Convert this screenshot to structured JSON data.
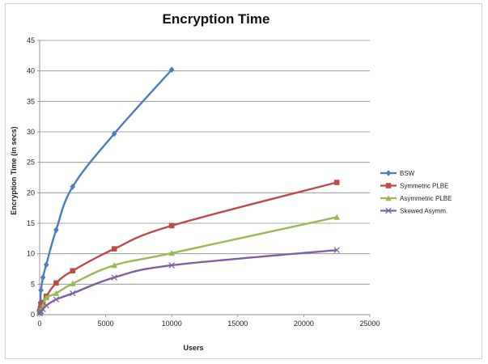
{
  "chart_data": {
    "type": "line",
    "title": "Encryption Time",
    "xlabel": "Users",
    "ylabel": "Encryption Time (in secs)",
    "xlim": [
      0,
      25000
    ],
    "ylim": [
      0,
      45
    ],
    "x_ticks": [
      0,
      5000,
      10000,
      15000,
      20000,
      25000
    ],
    "y_ticks": [
      0,
      5,
      10,
      15,
      20,
      25,
      30,
      35,
      40,
      45
    ],
    "grid": "horizontal",
    "legend_position": "right",
    "series": [
      {
        "name": "BSW",
        "color": "#4a7ebb",
        "marker": "diamond",
        "points": [
          [
            0,
            0.5
          ],
          [
            50,
            2
          ],
          [
            100,
            4
          ],
          [
            250,
            6.1
          ],
          [
            500,
            8.2
          ],
          [
            1250,
            13.9
          ],
          [
            2500,
            21
          ],
          [
            5650,
            29.7
          ],
          [
            10000,
            40.2
          ]
        ]
      },
      {
        "name": "Symmetric PLBE",
        "color": "#be4b48",
        "marker": "square",
        "points": [
          [
            0,
            0.5
          ],
          [
            50,
            1
          ],
          [
            100,
            1.5
          ],
          [
            250,
            2
          ],
          [
            500,
            3
          ],
          [
            1250,
            5.2
          ],
          [
            2500,
            7.2
          ],
          [
            5650,
            10.8
          ],
          [
            10000,
            14.6
          ],
          [
            22500,
            21.7
          ]
        ]
      },
      {
        "name": "Asymmetric PLBE",
        "color": "#98b954",
        "marker": "triangle",
        "points": [
          [
            0,
            0.3
          ],
          [
            50,
            0.7
          ],
          [
            100,
            1
          ],
          [
            250,
            1.5
          ],
          [
            500,
            2.8
          ],
          [
            1250,
            3.5
          ],
          [
            2500,
            5.1
          ],
          [
            5650,
            8.1
          ],
          [
            10000,
            10.1
          ],
          [
            22500,
            16
          ]
        ]
      },
      {
        "name": "Skewed Asymm.",
        "color": "#7d60a0",
        "marker": "x",
        "points": [
          [
            0,
            0.2
          ],
          [
            50,
            0.4
          ],
          [
            100,
            0.6
          ],
          [
            250,
            0.9
          ],
          [
            500,
            1.5
          ],
          [
            1250,
            2.5
          ],
          [
            2500,
            3.5
          ],
          [
            5650,
            6.1
          ],
          [
            10000,
            8.1
          ],
          [
            22500,
            10.6
          ]
        ]
      }
    ]
  }
}
